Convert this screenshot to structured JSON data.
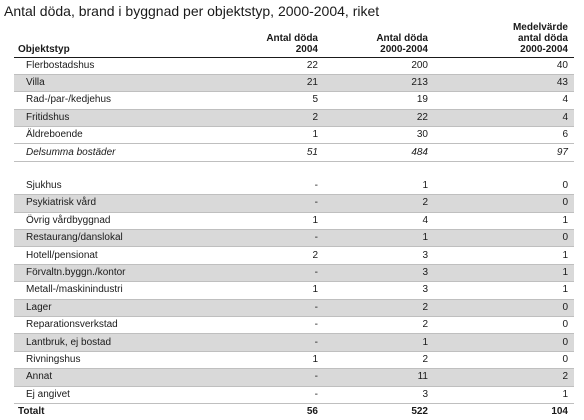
{
  "title": "Antal döda, brand i byggnad per objektstyp, 2000-2004, riket",
  "headers": {
    "type": "Objektstyp",
    "col1": [
      "Antal döda",
      "2004"
    ],
    "col2": [
      "Antal döda",
      "2000-2004"
    ],
    "col3": [
      "Medelvärde",
      "antal döda",
      "2000-2004"
    ]
  },
  "group1": [
    {
      "label": "Flerbostadshus",
      "a": "22",
      "b": "200",
      "c": "40"
    },
    {
      "label": "Villa",
      "a": "21",
      "b": "213",
      "c": "43"
    },
    {
      "label": "Rad-/par-/kedjehus",
      "a": "5",
      "b": "19",
      "c": "4"
    },
    {
      "label": "Fritidshus",
      "a": "2",
      "b": "22",
      "c": "4"
    },
    {
      "label": "Äldreboende",
      "a": "1",
      "b": "30",
      "c": "6"
    }
  ],
  "subtotal": {
    "label": "Delsumma bostäder",
    "a": "51",
    "b": "484",
    "c": "97"
  },
  "group2": [
    {
      "label": "Sjukhus",
      "a": "-",
      "b": "1",
      "c": "0"
    },
    {
      "label": "Psykiatrisk vård",
      "a": "-",
      "b": "2",
      "c": "0"
    },
    {
      "label": "Övrig vårdbyggnad",
      "a": "1",
      "b": "4",
      "c": "1"
    },
    {
      "label": "Restaurang/danslokal",
      "a": "-",
      "b": "1",
      "c": "0"
    },
    {
      "label": "Hotell/pensionat",
      "a": "2",
      "b": "3",
      "c": "1"
    },
    {
      "label": "Förvaltn.byggn./kontor",
      "a": "-",
      "b": "3",
      "c": "1"
    },
    {
      "label": "Metall-/maskinindustri",
      "a": "1",
      "b": "3",
      "c": "1"
    },
    {
      "label": "Lager",
      "a": "-",
      "b": "2",
      "c": "0"
    },
    {
      "label": "Reparationsverkstad",
      "a": "-",
      "b": "2",
      "c": "0"
    },
    {
      "label": "Lantbruk, ej bostad",
      "a": "-",
      "b": "1",
      "c": "0"
    },
    {
      "label": "Rivningshus",
      "a": "1",
      "b": "2",
      "c": "0"
    },
    {
      "label": "Annat",
      "a": "-",
      "b": "11",
      "c": "2"
    },
    {
      "label": "Ej angivet",
      "a": "-",
      "b": "3",
      "c": "1"
    }
  ],
  "total": {
    "label": "Totalt",
    "a": "56",
    "b": "522",
    "c": "104"
  },
  "colors": {
    "shade": "#d9d9d9",
    "rule": "#1a1a1a"
  }
}
